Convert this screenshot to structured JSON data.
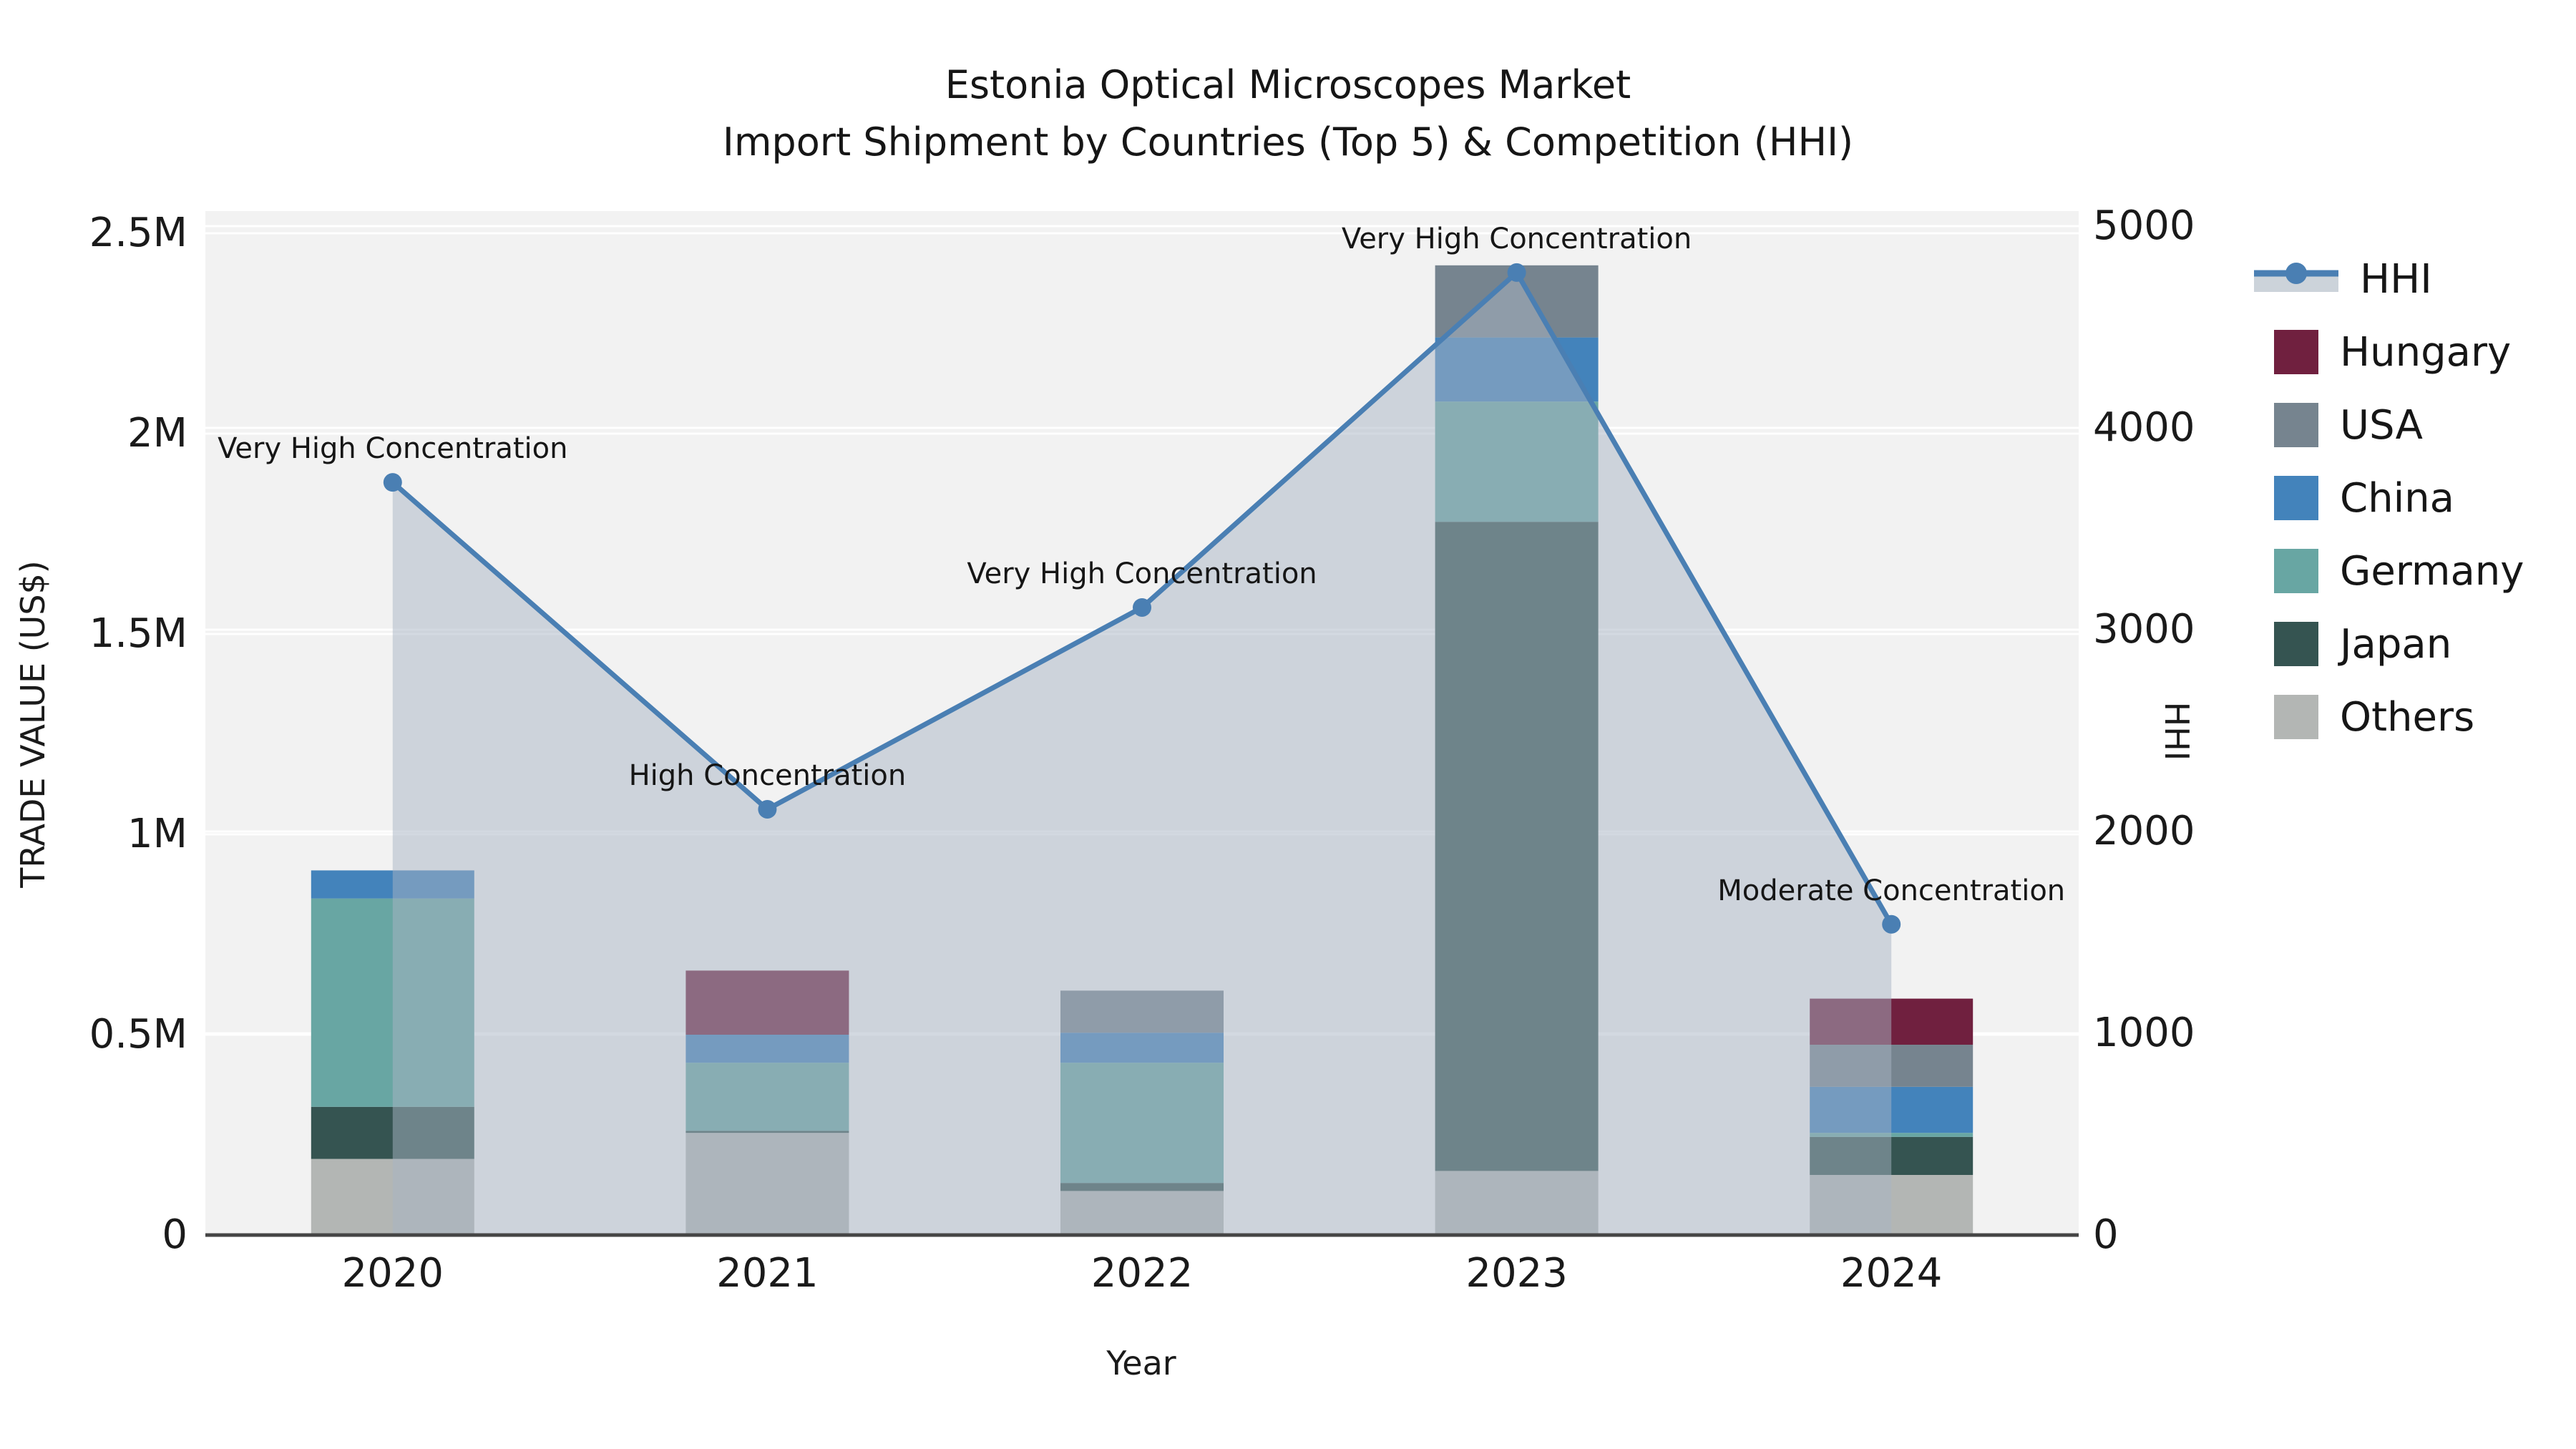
{
  "title": {
    "line1": "Estonia Optical Microscopes Market",
    "line2": "Import Shipment by Countries (Top 5) & Competition (HHI)"
  },
  "axes": {
    "x": {
      "label": "Year",
      "ticks": [
        "2020",
        "2021",
        "2022",
        "2023",
        "2024"
      ]
    },
    "y_left": {
      "label": "TRADE VALUE (US$)",
      "ticks": [
        "0",
        "0.5M",
        "1M",
        "1.5M",
        "2M",
        "2.5M"
      ],
      "tick_values": [
        0,
        500000,
        1000000,
        1500000,
        2000000,
        2500000
      ],
      "max": 2500000
    },
    "y_right": {
      "label": "HHI",
      "ticks": [
        "0",
        "1000",
        "2000",
        "3000",
        "4000",
        "5000"
      ],
      "tick_values": [
        0,
        1000,
        2000,
        3000,
        4000,
        5000
      ],
      "max": 5000
    }
  },
  "legend": {
    "items": [
      {
        "label": "HHI",
        "type": "line",
        "color": "#4a7fb3"
      },
      {
        "label": "Hungary",
        "type": "patch",
        "color": "#70203f"
      },
      {
        "label": "USA",
        "type": "patch",
        "color": "#76848f"
      },
      {
        "label": "China",
        "type": "patch",
        "color": "#4383bb"
      },
      {
        "label": "Germany",
        "type": "patch",
        "color": "#68a6a3"
      },
      {
        "label": "Japan",
        "type": "patch",
        "color": "#355451"
      },
      {
        "label": "Others",
        "type": "patch",
        "color": "#b3b6b4"
      }
    ]
  },
  "chart_data": {
    "type": "combo: stacked-bar + line-area",
    "title": "Estonia Optical Microscopes Market — Import Shipment by Countries (Top 5) & Competition (HHI)",
    "categories": [
      "2020",
      "2021",
      "2022",
      "2023",
      "2024"
    ],
    "xlabel": "Year",
    "ylabel_left": "TRADE VALUE (US$)",
    "ylabel_right": "HHI",
    "ylim_left": [
      0,
      2500000
    ],
    "ylim_right": [
      0,
      5000
    ],
    "grid": "horizontal, white on light gray panel, dual-scale gridline pairs",
    "legend_position": "right, outside plot",
    "panel_color": "#f2f2f2",
    "series": [
      {
        "name": "Others",
        "axis": "left",
        "color": "#b3b6b4",
        "values": [
          190000,
          255000,
          110000,
          160000,
          150000
        ]
      },
      {
        "name": "Japan",
        "axis": "left",
        "color": "#355451",
        "values": [
          130000,
          5000,
          20000,
          1620000,
          95000
        ]
      },
      {
        "name": "Germany",
        "axis": "left",
        "color": "#68a6a3",
        "values": [
          520000,
          170000,
          300000,
          300000,
          10000
        ]
      },
      {
        "name": "China",
        "axis": "left",
        "color": "#4383bb",
        "values": [
          70000,
          70000,
          75000,
          160000,
          115000
        ]
      },
      {
        "name": "USA",
        "axis": "left",
        "color": "#76848f",
        "values": [
          0,
          0,
          105000,
          180000,
          105000
        ]
      },
      {
        "name": "Hungary",
        "axis": "left",
        "color": "#70203f",
        "values": [
          0,
          160000,
          0,
          0,
          115000
        ]
      }
    ],
    "bar_totals": [
      910000,
      660000,
      610000,
      2420000,
      590000
    ],
    "line_series": {
      "name": "HHI",
      "axis": "right",
      "color": "#4a7fb3",
      "area_fill": "rgba(167,180,196,0.5)",
      "values": [
        3730,
        2110,
        3110,
        4770,
        1540
      ]
    },
    "annotations": [
      "Very High Concentration",
      "High Concentration",
      "Very High Concentration",
      "Very High Concentration",
      "Moderate Concentration"
    ]
  },
  "colors": {
    "background": "#ffffff",
    "panel": "#f2f2f2",
    "grid": "#ffffff",
    "spine": "#454545",
    "text": "#1a1a1a",
    "hhi_line": "#4a7fb3",
    "hhi_area": "rgba(167,180,196,0.5)",
    "legend_area_swatch": "#ccd3da"
  }
}
